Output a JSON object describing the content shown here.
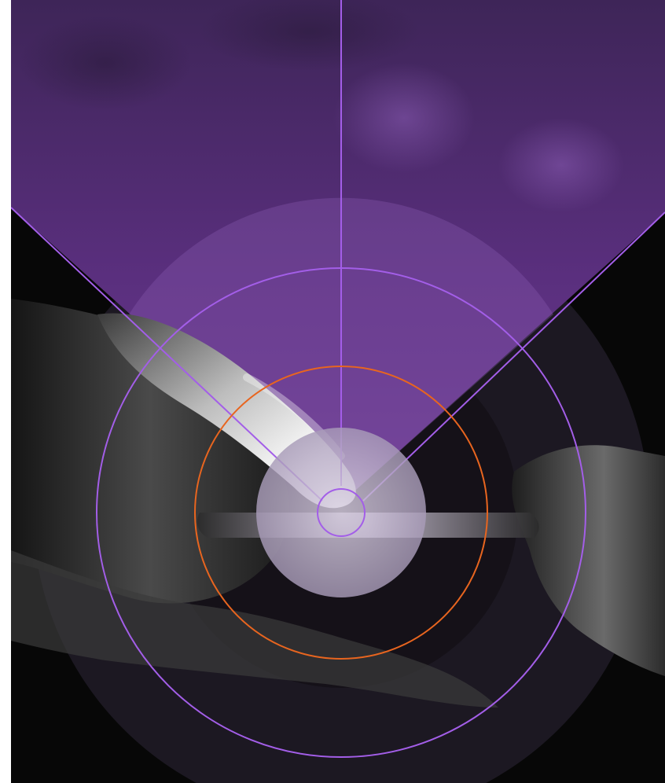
{
  "image": {
    "subject": "",
    "colors": {
      "background": "#070707",
      "purple_haze": "#5a2f7e",
      "beam": "#8a4fc4",
      "ring_purple": "#a35ee8",
      "ring_orange": "#e8651f",
      "center_disc": "#b7a9c4",
      "outer_disc": "#1c1822",
      "skin_light": "#f2eef6",
      "skin_dark": "#2a2a2a"
    }
  }
}
